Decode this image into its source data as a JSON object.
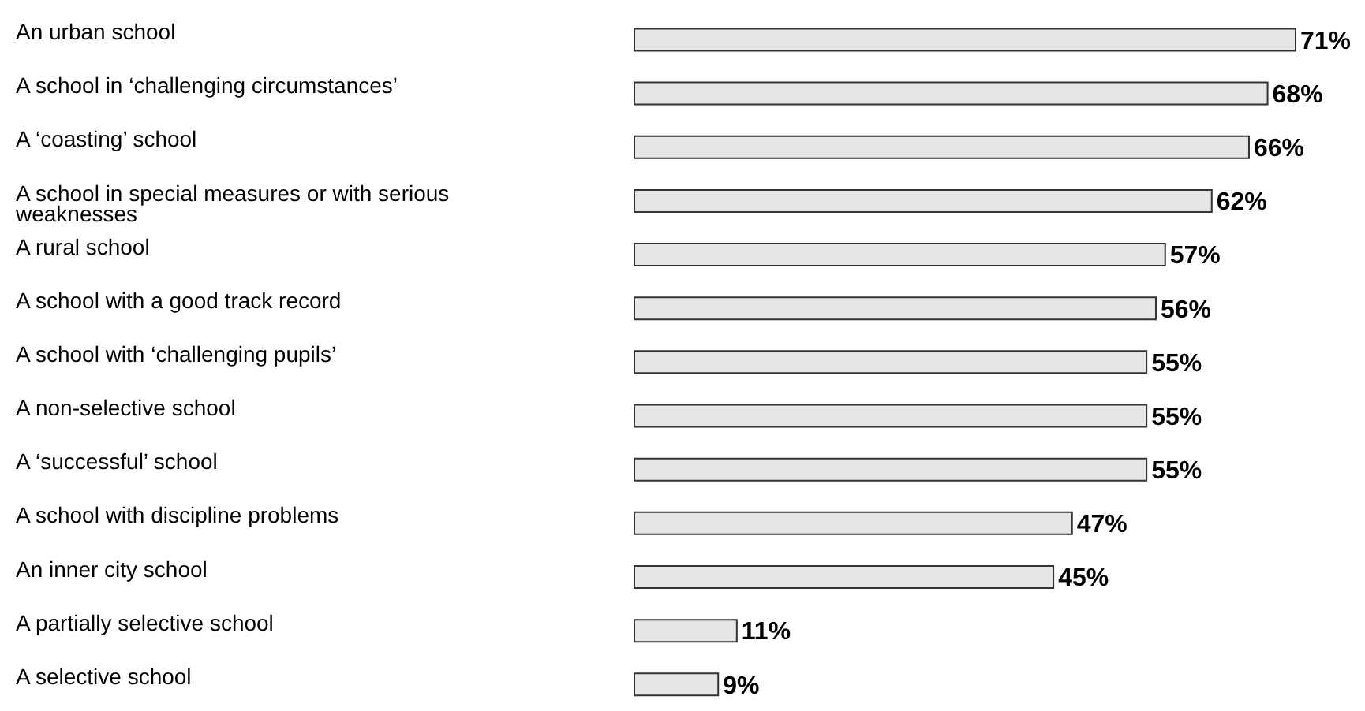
{
  "chart_data": {
    "type": "bar",
    "orientation": "horizontal",
    "categories": [
      "An urban school",
      "A school in ‘challenging circumstances’",
      "A ‘coasting’ school",
      "A school in special measures or with serious weaknesses",
      "A rural school",
      "A school with a good track record",
      "A school with ‘challenging pupils’",
      "A non-selective school",
      "A ‘successful’ school",
      "A school with discipline problems",
      "An inner city school",
      "A partially selective school",
      "A selective school"
    ],
    "values": [
      71,
      68,
      66,
      62,
      57,
      56,
      55,
      55,
      55,
      47,
      45,
      11,
      9
    ],
    "value_labels": [
      "71%",
      "68%",
      "66%",
      "62%",
      "57%",
      "56%",
      "55%",
      "55%",
      "55%",
      "47%",
      "45%",
      "11%",
      "9%"
    ],
    "color": "#e6e6e6"
  }
}
